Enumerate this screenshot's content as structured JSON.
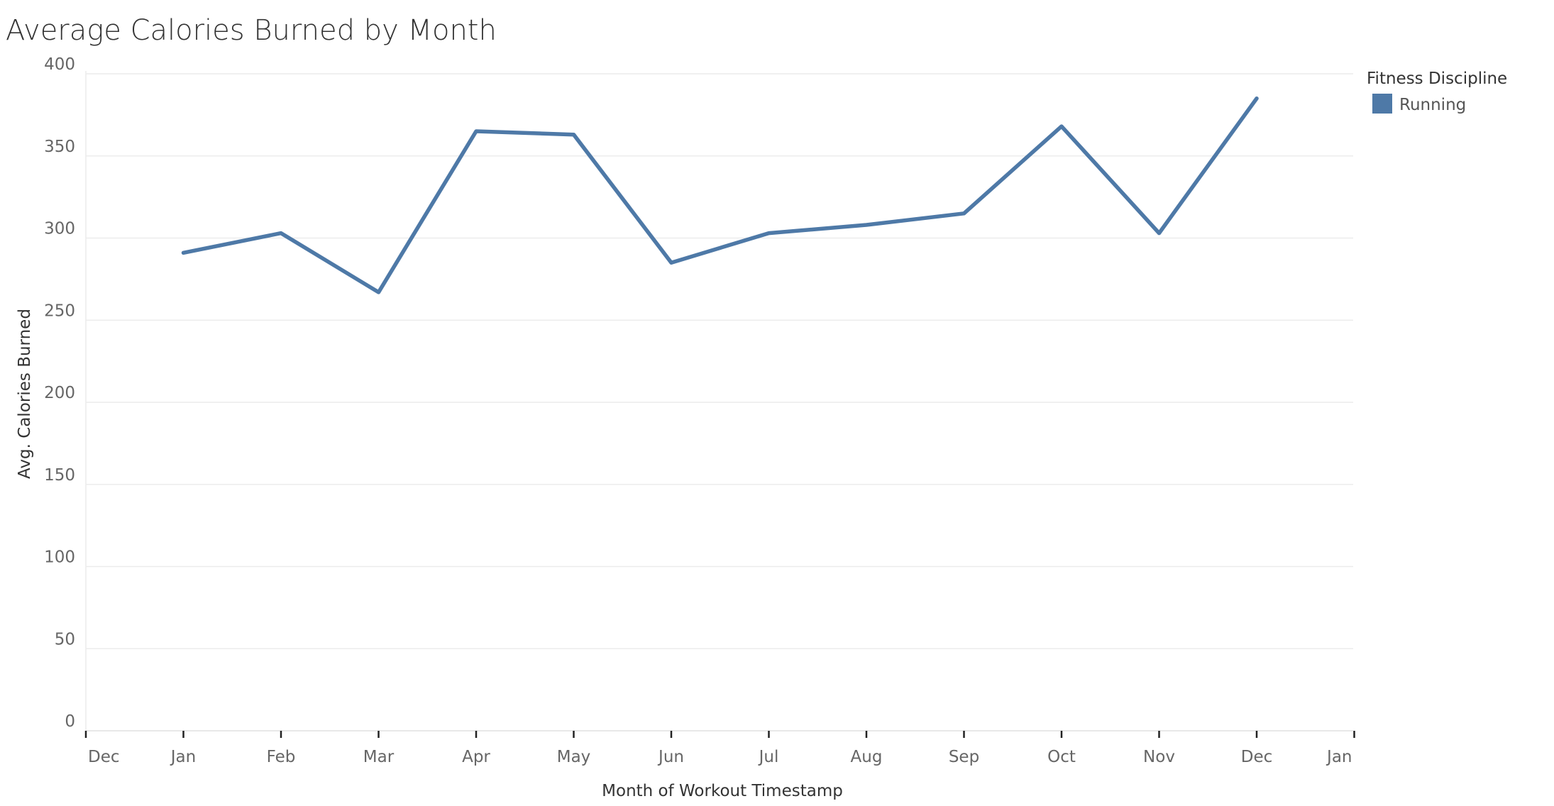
{
  "chart_data": {
    "type": "line",
    "title": "Average Calories Burned by Month",
    "xlabel": "Month of Workout Timestamp",
    "ylabel": "Avg. Calories Burned",
    "x_tick_labels": [
      "Dec",
      "Jan",
      "Feb",
      "Mar",
      "Apr",
      "May",
      "Jun",
      "Jul",
      "Aug",
      "Sep",
      "Oct",
      "Nov",
      "Dec",
      "Jan"
    ],
    "categories": [
      "Jan",
      "Feb",
      "Mar",
      "Apr",
      "May",
      "Jun",
      "Jul",
      "Aug",
      "Sep",
      "Oct",
      "Nov",
      "Dec"
    ],
    "ylim": [
      0,
      400
    ],
    "y_ticks": [
      0,
      50,
      100,
      150,
      200,
      250,
      300,
      350,
      400
    ],
    "grid": true,
    "legend": {
      "title": "Fitness Discipline",
      "placement": "top-right"
    },
    "series": [
      {
        "name": "Running",
        "color": "#4e79a7",
        "values": [
          291,
          303,
          267,
          365,
          363,
          285,
          303,
          308,
          315,
          368,
          303,
          385
        ]
      }
    ]
  }
}
